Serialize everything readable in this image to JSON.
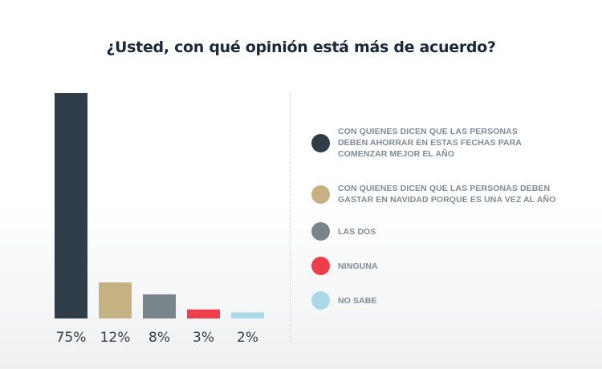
{
  "chart_data": {
    "type": "bar",
    "title": "¿Usted, con qué opinión está más de acuerdo?",
    "xlabel": "",
    "ylabel": "",
    "ylim": [
      0,
      75
    ],
    "grid": false,
    "legend_position": "right",
    "categories": [
      "CON QUIENES DICEN QUE LAS PERSONAS DEBEN AHORRAR EN ESTAS FECHAS PARA COMENZAR MEJOR EL AÑO",
      "CON QUIENES DICEN QUE LAS PERSONAS DEBEN GASTAR EN NAVIDAD PORQUE ES UNA VEZ AL AÑO",
      "LAS DOS",
      "NINGUNA",
      "NO SABE"
    ],
    "values": [
      75,
      12,
      8,
      3,
      2
    ],
    "value_labels": [
      "75%",
      "12%",
      "8%",
      "3%",
      "2%"
    ],
    "colors": [
      "#2f3d48",
      "#c4b283",
      "#7a858b",
      "#ee3e4b",
      "#a9d9e7"
    ]
  },
  "legend": {
    "items": [
      {
        "lines": [
          "CON QUIENES DICEN QUE LAS PERSONAS",
          "DEBEN AHORRAR EN ESTAS FECHAS PARA",
          "COMENZAR MEJOR EL AÑO"
        ]
      },
      {
        "lines": [
          "CON QUIENES DICEN QUE LAS PERSONAS DEBEN",
          "GASTAR EN NAVIDAD PORQUE ES UNA VEZ AL AÑO"
        ]
      },
      {
        "lines": [
          "LAS DOS"
        ]
      },
      {
        "lines": [
          "NINGUNA"
        ]
      },
      {
        "lines": [
          "NO SABE"
        ]
      }
    ]
  }
}
